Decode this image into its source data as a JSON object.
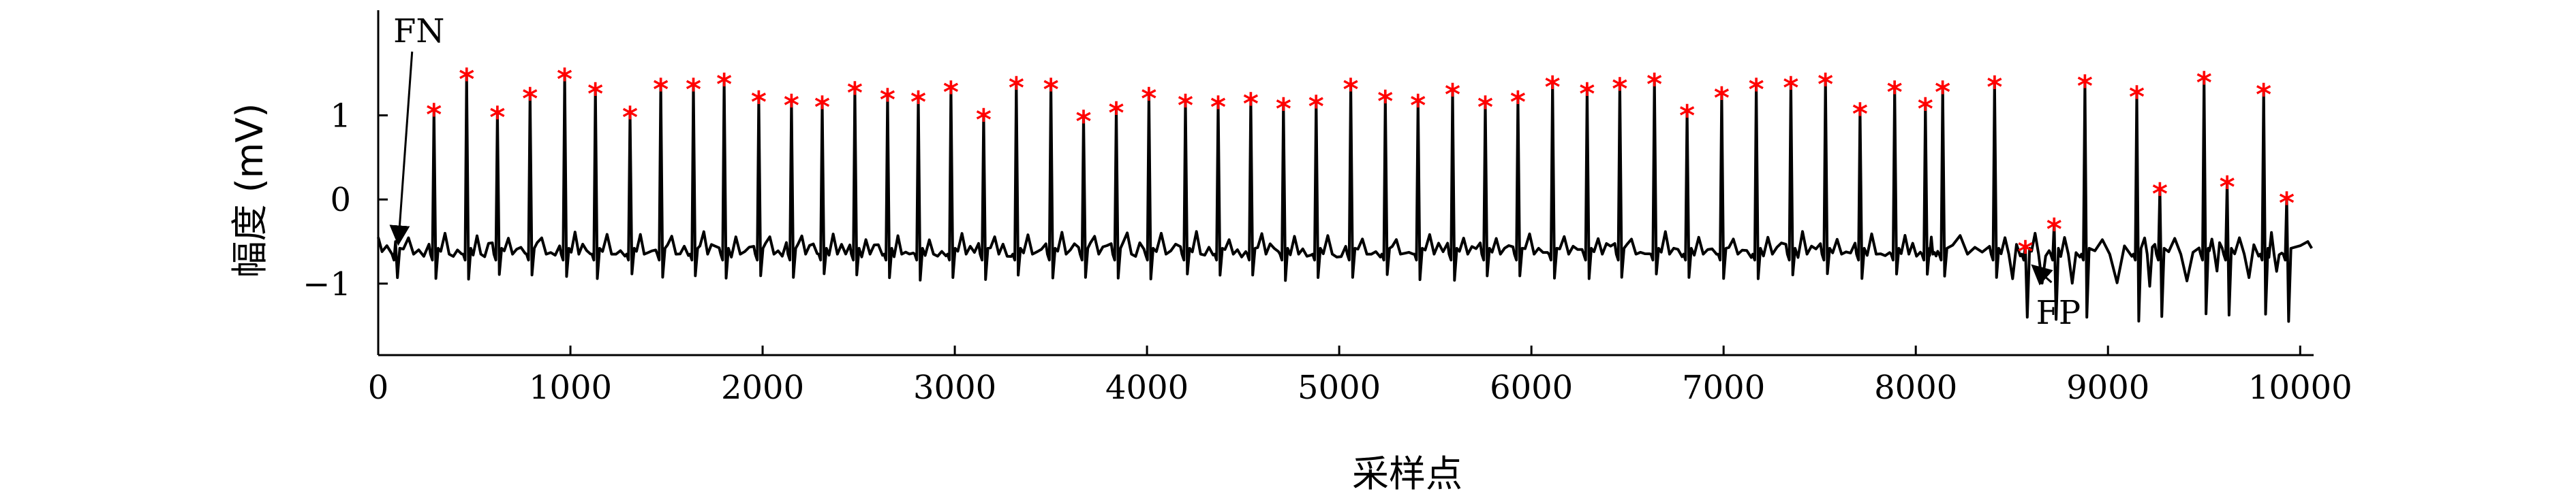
{
  "chart_data": {
    "type": "line",
    "title": "",
    "xlabel": "采样点",
    "ylabel": "幅度 (mV)",
    "xlim": [
      0,
      10070
    ],
    "ylim": [
      -1.85,
      2.25
    ],
    "xticks": [
      0,
      1000,
      2000,
      3000,
      4000,
      5000,
      6000,
      7000,
      8000,
      9000,
      10000
    ],
    "yticks": [
      -1,
      0,
      1
    ],
    "grid": false,
    "baseline": -0.6,
    "series": [
      {
        "peaks_x": [
          90,
          290,
          460,
          620,
          790,
          970,
          1130,
          1310,
          1470,
          1640,
          1800,
          1980,
          2150,
          2310,
          2480,
          2650,
          2810,
          2980,
          3150,
          3320,
          3500,
          3670,
          3840,
          4010,
          4200,
          4370,
          4540,
          4710,
          4880,
          5060,
          5240,
          5410,
          5590,
          5760,
          5930,
          6110,
          6290,
          6460,
          6640,
          6810,
          6990,
          7170,
          7350,
          7530,
          7710,
          7890,
          8050,
          8140,
          8410,
          8570,
          8720,
          8880,
          9150,
          9270,
          9500,
          9620,
          9810,
          9930
        ],
        "peaks_y": [
          -0.5,
          1.08,
          1.5,
          1.05,
          1.27,
          1.5,
          1.33,
          1.05,
          1.38,
          1.38,
          1.44,
          1.23,
          1.19,
          1.17,
          1.34,
          1.26,
          1.23,
          1.35,
          1.02,
          1.4,
          1.38,
          1.0,
          1.1,
          1.27,
          1.19,
          1.17,
          1.21,
          1.15,
          1.18,
          1.38,
          1.24,
          1.19,
          1.32,
          1.17,
          1.23,
          1.41,
          1.33,
          1.39,
          1.44,
          1.07,
          1.28,
          1.38,
          1.4,
          1.44,
          1.09,
          1.35,
          1.15,
          1.35,
          1.41,
          -0.55,
          -0.28,
          1.42,
          1.29,
          0.14,
          1.46,
          0.22,
          1.32,
          0.03
        ]
      }
    ],
    "detections": {
      "marker": "*",
      "color": "#ff0000",
      "x": [
        290,
        460,
        620,
        790,
        970,
        1130,
        1310,
        1470,
        1640,
        1800,
        1980,
        2150,
        2310,
        2480,
        2650,
        2810,
        2980,
        3150,
        3320,
        3500,
        3670,
        3840,
        4010,
        4200,
        4370,
        4540,
        4710,
        4880,
        5060,
        5240,
        5410,
        5590,
        5760,
        5930,
        6110,
        6290,
        6460,
        6640,
        6810,
        6990,
        7170,
        7350,
        7530,
        7710,
        7890,
        8050,
        8140,
        8410,
        8570,
        8720,
        8880,
        9150,
        9270,
        9500,
        9620,
        9810,
        9930
      ],
      "y": [
        1.08,
        1.5,
        1.05,
        1.27,
        1.5,
        1.33,
        1.05,
        1.38,
        1.38,
        1.44,
        1.23,
        1.19,
        1.17,
        1.34,
        1.26,
        1.23,
        1.35,
        1.02,
        1.4,
        1.38,
        1.0,
        1.1,
        1.27,
        1.19,
        1.17,
        1.21,
        1.15,
        1.18,
        1.38,
        1.24,
        1.19,
        1.32,
        1.17,
        1.23,
        1.41,
        1.33,
        1.39,
        1.44,
        1.07,
        1.28,
        1.38,
        1.4,
        1.44,
        1.09,
        1.35,
        1.15,
        1.35,
        1.41,
        -0.55,
        -0.28,
        1.42,
        1.29,
        0.14,
        1.46,
        0.22,
        1.32,
        0.03
      ]
    },
    "annotations": [
      {
        "text": "FN",
        "x": 70,
        "y": 2.0,
        "arrow_to": [
          70,
          -0.6
        ]
      },
      {
        "text": "FP",
        "x": 8600,
        "y": -1.35,
        "arrow_to": [
          8580,
          -0.9
        ]
      }
    ]
  }
}
